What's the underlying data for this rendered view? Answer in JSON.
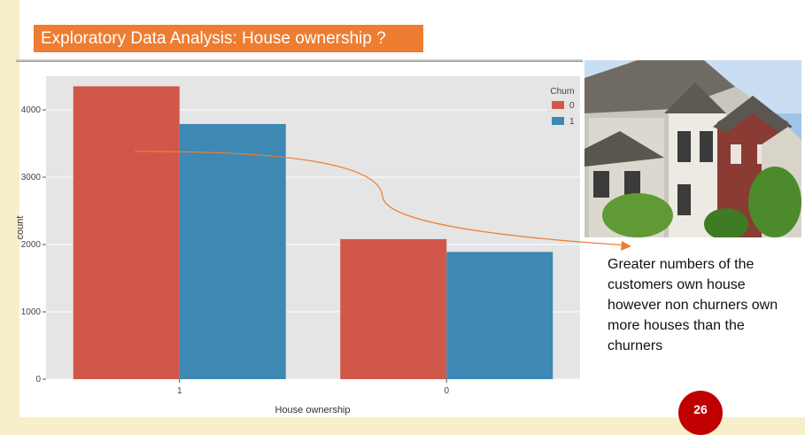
{
  "slide": {
    "title": "Exploratory Data Analysis: House ownership ?",
    "note": "Greater numbers of the customers own house however non churners own more houses than the churners",
    "page_number": "26"
  },
  "photo": {
    "icon": "houses-photo"
  },
  "colors": {
    "title_bg": "#ed7d31",
    "series_0": "#d0574a",
    "series_1": "#3e88b4",
    "arrow": "#ed7d31",
    "badge": "#c00000"
  },
  "chart_data": {
    "type": "bar",
    "xlabel": "House ownership",
    "ylabel": "count",
    "categories": [
      "1",
      "0"
    ],
    "series": [
      {
        "name": "0",
        "values": [
          4350,
          2080
        ]
      },
      {
        "name": "1",
        "values": [
          3790,
          1890
        ]
      }
    ],
    "ylim": [
      0,
      4500
    ],
    "yticks": [
      0,
      1000,
      2000,
      3000,
      4000
    ],
    "legend": {
      "title": "Churn",
      "position": "top-right"
    },
    "grid": true
  }
}
